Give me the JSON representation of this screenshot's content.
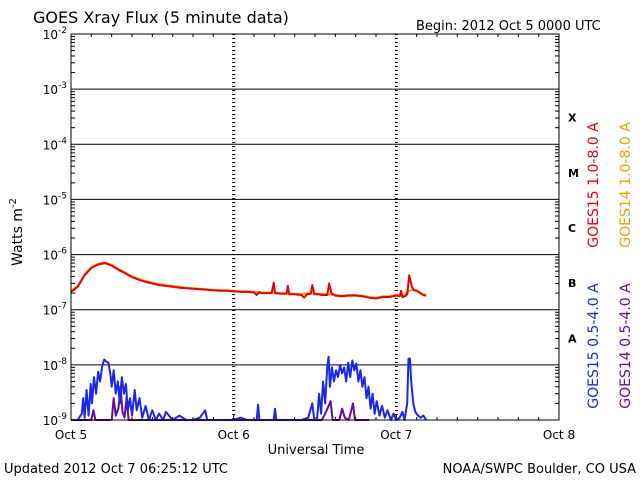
{
  "chart_data": {
    "type": "line",
    "title": "GOES Xray Flux (5 minute data)",
    "begin_text": "Begin:  2012 Oct 5 0000 UTC",
    "ylabel": "Watts m",
    "ylabel_sup": "-2",
    "xlabel": "Universal Time",
    "updated": "Updated 2012 Oct  7 06:25:12 UTC",
    "credit": "NOAA/SWPC Boulder, CO USA",
    "y_scale": "log",
    "ylim": [
      1e-09,
      0.01
    ],
    "y_ticks": [
      {
        "exp": -2,
        "label": "10",
        "sup": "-2"
      },
      {
        "exp": -3,
        "label": "10",
        "sup": "-3"
      },
      {
        "exp": -4,
        "label": "10",
        "sup": "-4"
      },
      {
        "exp": -5,
        "label": "10",
        "sup": "-5"
      },
      {
        "exp": -6,
        "label": "10",
        "sup": "-6"
      },
      {
        "exp": -7,
        "label": "10",
        "sup": "-7"
      },
      {
        "exp": -8,
        "label": "10",
        "sup": "-8"
      },
      {
        "exp": -9,
        "label": "10",
        "sup": "-9"
      }
    ],
    "xlim": [
      0,
      72
    ],
    "x_ticks": [
      {
        "hour": 0,
        "label": "Oct 5"
      },
      {
        "hour": 24,
        "label": "Oct 6"
      },
      {
        "hour": 48,
        "label": "Oct 7"
      },
      {
        "hour": 72,
        "label": "Oct 8"
      }
    ],
    "flare_classes": [
      {
        "label": "X",
        "exp": -3.5
      },
      {
        "label": "M",
        "exp": -4.5
      },
      {
        "label": "C",
        "exp": -5.5
      },
      {
        "label": "B",
        "exp": -6.5
      },
      {
        "label": "A",
        "exp": -7.5
      }
    ],
    "legend_right": [
      {
        "label": "GOES15 1.0-8.0 A",
        "color": "#e8000b"
      },
      {
        "label": "GOES14 1.0-8.0 A",
        "color": "#f0a000"
      },
      {
        "label": "GOES15 0.5-4.0 A",
        "color": "#1a26e8"
      },
      {
        "label": "GOES14 0.5-4.0 A",
        "color": "#6a0a9a"
      }
    ],
    "series": [
      {
        "name": "GOES15 1.0-8.0 A",
        "color": "#e8000b",
        "points": [
          [
            0,
            2.1e-07
          ],
          [
            1,
            2.6e-07
          ],
          [
            2,
            4.2e-07
          ],
          [
            3,
            5.7e-07
          ],
          [
            4,
            6.6e-07
          ],
          [
            5,
            7e-07
          ],
          [
            6,
            6.3e-07
          ],
          [
            7,
            5.3e-07
          ],
          [
            8,
            4.6e-07
          ],
          [
            9,
            3.9e-07
          ],
          [
            10,
            3.5e-07
          ],
          [
            11,
            3.2e-07
          ],
          [
            12,
            3e-07
          ],
          [
            13,
            2.8e-07
          ],
          [
            14,
            2.7e-07
          ],
          [
            15,
            2.6e-07
          ],
          [
            16,
            2.5e-07
          ],
          [
            17,
            2.45e-07
          ],
          [
            18,
            2.4e-07
          ],
          [
            19,
            2.35e-07
          ],
          [
            20,
            2.3e-07
          ],
          [
            21,
            2.25e-07
          ],
          [
            22,
            2.2e-07
          ],
          [
            23,
            2.2e-07
          ],
          [
            24,
            2.15e-07
          ],
          [
            25,
            2.1e-07
          ],
          [
            26,
            2.1e-07
          ],
          [
            27,
            2.05e-07
          ],
          [
            27.4,
            1.85e-07
          ],
          [
            27.8,
            2.1e-07
          ],
          [
            28,
            2e-07
          ],
          [
            29,
            2e-07
          ],
          [
            29.6,
            2e-07
          ],
          [
            29.9,
            3.1e-07
          ],
          [
            30.1,
            2e-07
          ],
          [
            31,
            1.95e-07
          ],
          [
            31.8,
            1.95e-07
          ],
          [
            32,
            2.7e-07
          ],
          [
            32.2,
            1.9e-07
          ],
          [
            33,
            1.9e-07
          ],
          [
            34,
            1.85e-07
          ],
          [
            34.4,
            1.65e-07
          ],
          [
            34.8,
            1.9e-07
          ],
          [
            35.4,
            1.95e-07
          ],
          [
            35.6,
            2.8e-07
          ],
          [
            35.9,
            1.9e-07
          ],
          [
            36.5,
            1.9e-07
          ],
          [
            37,
            1.85e-07
          ],
          [
            37.8,
            1.85e-07
          ],
          [
            38.1,
            3e-07
          ],
          [
            38.4,
            2e-07
          ],
          [
            39,
            1.8e-07
          ],
          [
            40,
            1.75e-07
          ],
          [
            41,
            1.8e-07
          ],
          [
            42,
            1.8e-07
          ],
          [
            43,
            1.75e-07
          ],
          [
            44,
            1.65e-07
          ],
          [
            45,
            1.6e-07
          ],
          [
            46,
            1.7e-07
          ],
          [
            47,
            1.7e-07
          ],
          [
            48,
            1.8e-07
          ],
          [
            48.5,
            1.75e-07
          ],
          [
            48.7,
            2.2e-07
          ],
          [
            48.9,
            1.7e-07
          ],
          [
            49.3,
            1.75e-07
          ],
          [
            49.6,
            1.9e-07
          ],
          [
            49.9,
            4.2e-07
          ],
          [
            50.3,
            2.6e-07
          ],
          [
            50.6,
            2.25e-07
          ],
          [
            51,
            2.2e-07
          ],
          [
            51.5,
            2e-07
          ],
          [
            52,
            1.85e-07
          ],
          [
            52.4,
            1.8e-07
          ]
        ]
      },
      {
        "name": "GOES14 1.0-8.0 A",
        "color": "#f0a000",
        "points": [
          [
            0,
            2.2e-07
          ],
          [
            1,
            2.7e-07
          ],
          [
            2,
            4.4e-07
          ],
          [
            3,
            5.9e-07
          ],
          [
            4,
            6.8e-07
          ],
          [
            5,
            7.2e-07
          ],
          [
            6,
            6.5e-07
          ],
          [
            7,
            5.5e-07
          ],
          [
            8,
            4.7e-07
          ],
          [
            9,
            4e-07
          ],
          [
            10,
            3.6e-07
          ],
          [
            11,
            3.3e-07
          ],
          [
            12,
            3.1e-07
          ],
          [
            13,
            2.9e-07
          ],
          [
            14,
            2.8e-07
          ],
          [
            15,
            2.7e-07
          ],
          [
            16,
            2.6e-07
          ],
          [
            17,
            2.5e-07
          ],
          [
            18,
            2.45e-07
          ],
          [
            19,
            2.4e-07
          ],
          [
            20,
            2.35e-07
          ],
          [
            21,
            2.3e-07
          ],
          [
            22,
            2.25e-07
          ],
          [
            23,
            2.25e-07
          ],
          [
            24,
            2.2e-07
          ],
          [
            25,
            2.15e-07
          ],
          [
            26,
            2.15e-07
          ],
          [
            27,
            2.1e-07
          ],
          [
            28,
            2.05e-07
          ],
          [
            29,
            2.05e-07
          ],
          [
            30,
            2.05e-07
          ],
          [
            31,
            2e-07
          ],
          [
            32,
            1.95e-07
          ],
          [
            33,
            1.95e-07
          ],
          [
            34,
            1.9e-07
          ],
          [
            35,
            2e-07
          ],
          [
            36,
            1.95e-07
          ],
          [
            37,
            1.95e-07
          ],
          [
            38,
            1.9e-07
          ],
          [
            39,
            1.85e-07
          ],
          [
            40,
            1.8e-07
          ],
          [
            41,
            1.85e-07
          ],
          [
            42,
            1.85e-07
          ],
          [
            43,
            1.8e-07
          ],
          [
            44,
            1.7e-07
          ],
          [
            45,
            1.65e-07
          ],
          [
            46,
            1.75e-07
          ],
          [
            47,
            1.75e-07
          ],
          [
            48,
            1.85e-07
          ],
          [
            49,
            1.8e-07
          ],
          [
            49.9,
            2.2e-07
          ],
          [
            50.5,
            2.3e-07
          ],
          [
            51,
            2.25e-07
          ],
          [
            52,
            1.9e-07
          ],
          [
            52.4,
            1.85e-07
          ]
        ]
      },
      {
        "name": "GOES15 0.5-4.0 A",
        "color": "#1a26e8",
        "points": [
          [
            0,
            1e-09
          ],
          [
            1,
            1e-09
          ],
          [
            1.6,
            1.3e-09
          ],
          [
            1.8,
            2.5e-09
          ],
          [
            2.0,
            1.1e-09
          ],
          [
            2.3,
            3.5e-09
          ],
          [
            2.6,
            1.2e-09
          ],
          [
            2.9,
            4.5e-09
          ],
          [
            3.1,
            2e-09
          ],
          [
            3.4,
            6e-09
          ],
          [
            3.7,
            3e-09
          ],
          [
            4.0,
            7.5e-09
          ],
          [
            4.3,
            5e-09
          ],
          [
            4.6,
            9.5e-09
          ],
          [
            4.9,
            1.25e-08
          ],
          [
            5.2,
            1.15e-08
          ],
          [
            5.5,
            1.1e-08
          ],
          [
            5.8,
            7e-09
          ],
          [
            6.0,
            4e-09
          ],
          [
            6.3,
            8e-09
          ],
          [
            6.6,
            3e-09
          ],
          [
            6.9,
            5e-09
          ],
          [
            7.2,
            2e-09
          ],
          [
            7.5,
            6e-09
          ],
          [
            7.8,
            3e-09
          ],
          [
            8.1,
            4.5e-09
          ],
          [
            8.4,
            1.5e-09
          ],
          [
            8.7,
            2.5e-09
          ],
          [
            9.0,
            1.2e-09
          ],
          [
            9.4,
            3.5e-09
          ],
          [
            9.7,
            1.5e-09
          ],
          [
            10.1,
            2.5e-09
          ],
          [
            10.5,
            1.1e-09
          ],
          [
            11,
            1.8e-09
          ],
          [
            11.5,
            1e-09
          ],
          [
            12,
            1.5e-09
          ],
          [
            12.5,
            1e-09
          ],
          [
            13,
            1.3e-09
          ],
          [
            13.6,
            1e-09
          ],
          [
            14,
            1.4e-09
          ],
          [
            15,
            1e-09
          ],
          [
            16,
            1.2e-09
          ],
          [
            17,
            1e-09
          ],
          [
            18,
            1e-09
          ],
          [
            19,
            1.1e-09
          ],
          [
            19.8,
            1.5e-09
          ],
          [
            20.1,
            1e-09
          ],
          [
            22,
            1e-09
          ],
          [
            24,
            1e-09
          ],
          [
            25,
            1.1e-09
          ],
          [
            26,
            1e-09
          ],
          [
            27.4,
            1e-09
          ],
          [
            27.6,
            1.9e-09
          ],
          [
            27.8,
            1e-09
          ],
          [
            29.9,
            1e-09
          ],
          [
            30.1,
            1.6e-09
          ],
          [
            30.3,
            1e-09
          ],
          [
            32,
            1e-09
          ],
          [
            34,
            1e-09
          ],
          [
            35,
            1.1e-09
          ],
          [
            35.6,
            2e-09
          ],
          [
            35.9,
            1e-09
          ],
          [
            36.3,
            1e-09
          ],
          [
            36.6,
            3e-09
          ],
          [
            36.9,
            1.3e-09
          ],
          [
            37.2,
            5e-09
          ],
          [
            37.5,
            2e-09
          ],
          [
            37.8,
            9e-09
          ],
          [
            38.0,
            1.4e-08
          ],
          [
            38.2,
            4e-09
          ],
          [
            38.5,
            9e-09
          ],
          [
            38.8,
            5e-09
          ],
          [
            39.1,
            8e-09
          ],
          [
            39.4,
            6e-09
          ],
          [
            39.7,
            1e-08
          ],
          [
            40.0,
            7e-09
          ],
          [
            40.3,
            9e-09
          ],
          [
            40.6,
            5e-09
          ],
          [
            40.9,
            1.1e-08
          ],
          [
            41.2,
            6e-09
          ],
          [
            41.5,
            1.2e-08
          ],
          [
            41.8,
            8e-09
          ],
          [
            42.1,
            1.05e-08
          ],
          [
            42.4,
            5e-09
          ],
          [
            42.7,
            8e-09
          ],
          [
            43.0,
            4e-09
          ],
          [
            43.3,
            6e-09
          ],
          [
            43.6,
            2.5e-09
          ],
          [
            43.9,
            4e-09
          ],
          [
            44.2,
            1.6e-09
          ],
          [
            44.5,
            3e-09
          ],
          [
            44.8,
            1.3e-09
          ],
          [
            45.1,
            2.2e-09
          ],
          [
            45.5,
            1.2e-09
          ],
          [
            45.9,
            1.8e-09
          ],
          [
            46.3,
            1.1e-09
          ],
          [
            46.7,
            1.5e-09
          ],
          [
            47.2,
            1e-09
          ],
          [
            47.6,
            1.3e-09
          ],
          [
            48,
            1e-09
          ],
          [
            48.5,
            1.1e-09
          ],
          [
            48.9,
            1.4e-09
          ],
          [
            49.2,
            1e-09
          ],
          [
            49.6,
            2e-09
          ],
          [
            49.8,
            1.3e-08
          ],
          [
            50.0,
            1.3e-08
          ],
          [
            50.2,
            5e-09
          ],
          [
            50.5,
            2e-09
          ],
          [
            50.8,
            1.4e-09
          ],
          [
            51.2,
            1.2e-09
          ],
          [
            51.6,
            1.1e-09
          ],
          [
            52.0,
            1.2e-09
          ],
          [
            52.4,
            1e-09
          ]
        ]
      },
      {
        "name": "GOES14 0.5-4.0 A",
        "color": "#6a0a9a",
        "points": [
          [
            0,
            1e-09
          ],
          [
            3,
            1e-09
          ],
          [
            3.3,
            1.5e-09
          ],
          [
            3.6,
            1e-09
          ],
          [
            6,
            1e-09
          ],
          [
            6.3,
            2.5e-09
          ],
          [
            6.6,
            1.2e-09
          ],
          [
            7.0,
            1.6e-09
          ],
          [
            7.3,
            4e-09
          ],
          [
            7.6,
            1.4e-09
          ],
          [
            7.9,
            1.1e-09
          ],
          [
            8.2,
            2.5e-09
          ],
          [
            8.5,
            1e-09
          ],
          [
            11,
            1e-09
          ],
          [
            37,
            1e-09
          ],
          [
            37.5,
            1.3e-09
          ],
          [
            38.3,
            2.2e-09
          ],
          [
            38.6,
            1e-09
          ],
          [
            39.6,
            1e-09
          ],
          [
            40.0,
            1.6e-09
          ],
          [
            40.4,
            1.1e-09
          ],
          [
            41.0,
            1e-09
          ],
          [
            41.6,
            2e-09
          ],
          [
            41.9,
            1e-09
          ],
          [
            44,
            1e-09
          ]
        ]
      }
    ]
  }
}
